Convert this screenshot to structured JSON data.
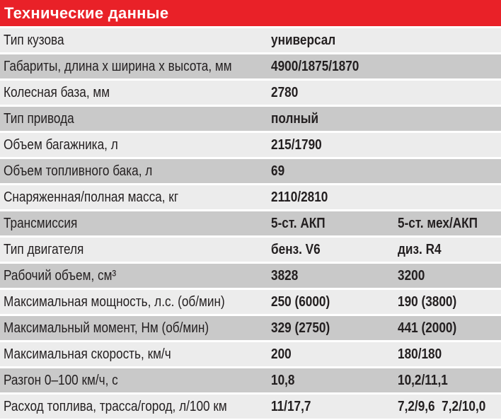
{
  "title": "Технические данные",
  "rows": [
    {
      "label": "Тип кузова",
      "v1": "универсал",
      "v2": ""
    },
    {
      "label": "Габариты, длина x ширина x высота, мм",
      "v1": "4900/1875/1870",
      "v2": ""
    },
    {
      "label": "Колесная база, мм",
      "v1": "2780",
      "v2": ""
    },
    {
      "label": "Тип привода",
      "v1": "полный",
      "v2": ""
    },
    {
      "label": "Объем багажника, л",
      "v1": "215/1790",
      "v2": ""
    },
    {
      "label": "Объем топливного бака, л",
      "v1": "69",
      "v2": ""
    },
    {
      "label": "Снаряженная/полная масса, кг",
      "v1": "2110/2810",
      "v2": ""
    },
    {
      "label": "Трансмиссия",
      "v1": "5-ст. АКП",
      "v2": "5-ст. мех/АКП"
    },
    {
      "label": "Тип двигателя",
      "v1": "бенз. V6",
      "v2": "диз. R4"
    },
    {
      "label": "Рабочий объем, см³",
      "v1": "3828",
      "v2": "3200"
    },
    {
      "label": "Максимальная мощность, л.с. (об/мин)",
      "v1": "250 (6000)",
      "v2": "190 (3800)"
    },
    {
      "label": "Максимальный момент, Нм (об/мин)",
      "v1": "329 (2750)",
      "v2": "441 (2000)"
    },
    {
      "label": "Максимальная скорость, км/ч",
      "v1": "200",
      "v2": "180/180"
    },
    {
      "label": "Разгон 0–100 км/ч, с",
      "v1": "10,8",
      "v2": "10,2/11,1"
    },
    {
      "label": "Расход топлива, трасса/город, л/100 км",
      "v1": "11/17,7",
      "v2": "7,2/9,6  7,2/10,0"
    }
  ]
}
